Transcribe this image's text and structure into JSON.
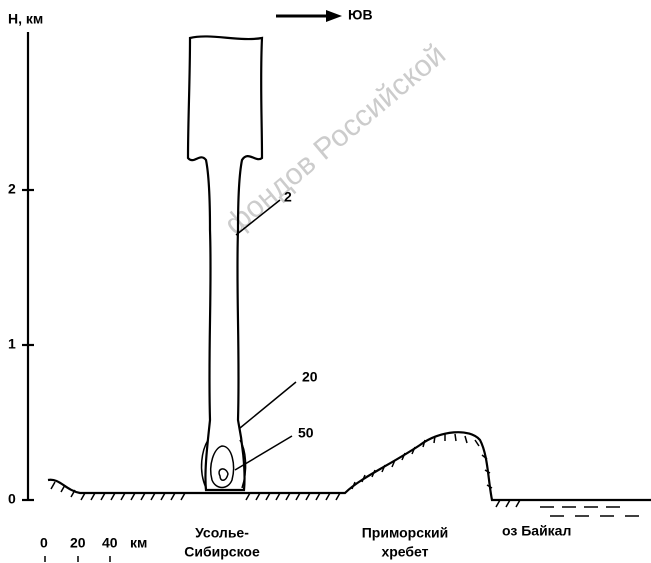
{
  "axis": {
    "label": "H, км",
    "ticks": [
      "0",
      "1",
      "2"
    ]
  },
  "direction": "ЮВ",
  "contours": [
    "2",
    "20",
    "50"
  ],
  "scale": {
    "ticks": [
      "0",
      "20",
      "40"
    ],
    "unit": "км"
  },
  "places": [
    {
      "lines": [
        "Усолье-",
        "Сибирское"
      ]
    },
    {
      "lines": [
        "Приморский",
        "хребет"
      ]
    },
    {
      "lines": [
        "оз Байкал"
      ]
    }
  ],
  "watermark": "фондов Российской"
}
